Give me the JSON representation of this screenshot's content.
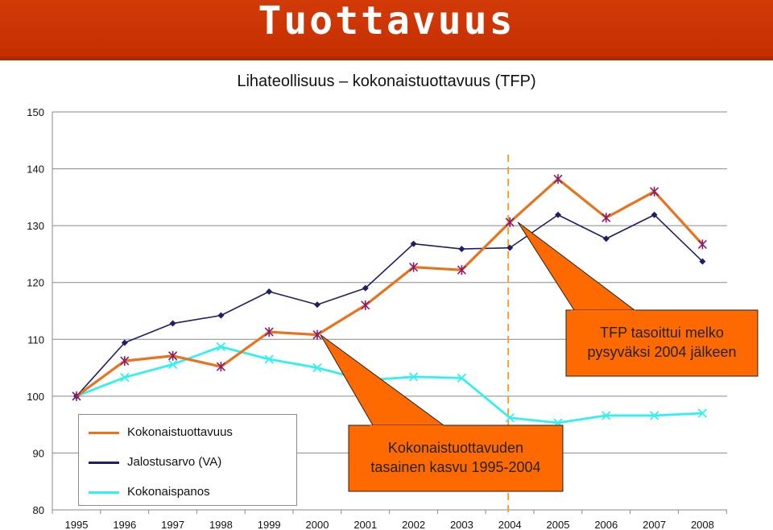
{
  "header": {
    "title": "Tuottavuus"
  },
  "chart_data": {
    "type": "line",
    "title": "Lihateollisuus – kokonaistuottavuus (TFP)",
    "xlabel": "",
    "ylabel": "",
    "categories": [
      "1995",
      "1996",
      "1997",
      "1998",
      "1999",
      "2000",
      "2001",
      "2002",
      "2003",
      "2004",
      "2005",
      "2006",
      "2007",
      "2008"
    ],
    "ylim": [
      80,
      150
    ],
    "yticks": [
      "80",
      "90",
      "100",
      "110",
      "120",
      "130",
      "140",
      "150"
    ],
    "grid": "horizontal",
    "legend": "bottom-left",
    "series": [
      {
        "name": "Kokonaistuottavuus",
        "color": "#e8731f",
        "marker": "star",
        "values": [
          100,
          106.2,
          107.1,
          105.2,
          111.3,
          110.8,
          116,
          122.7,
          122.2,
          130.6,
          138.2,
          131.4,
          136,
          126.7
        ]
      },
      {
        "name": "Jalostusarvo (VA)",
        "color": "#1f1f66",
        "marker": "diamond",
        "values": [
          100,
          109.4,
          112.8,
          114.2,
          118.4,
          116.1,
          119,
          126.8,
          125.9,
          126.1,
          131.9,
          127.7,
          131.9,
          123.7
        ]
      },
      {
        "name": "Kokonaispanos",
        "color": "#33f0f0",
        "marker": "x",
        "values": [
          100,
          103.3,
          105.6,
          108.7,
          106.5,
          105,
          102.8,
          103.4,
          103.2,
          96.2,
          95.3,
          96.6,
          96.6,
          97
        ]
      }
    ],
    "marker_line": {
      "category": "2004",
      "color": "#f0a030"
    },
    "annotations": [
      {
        "text": "TFP tasoittui melko pysyväksi 2004 jälkeen",
        "points_to": "2004",
        "series": "Kokonaistuottavuus"
      },
      {
        "text": "Kokonaistuottavuden tasainen kasvu 1995-2004",
        "points_to": "2000",
        "series": "Kokonaistuottavuus"
      }
    ]
  }
}
